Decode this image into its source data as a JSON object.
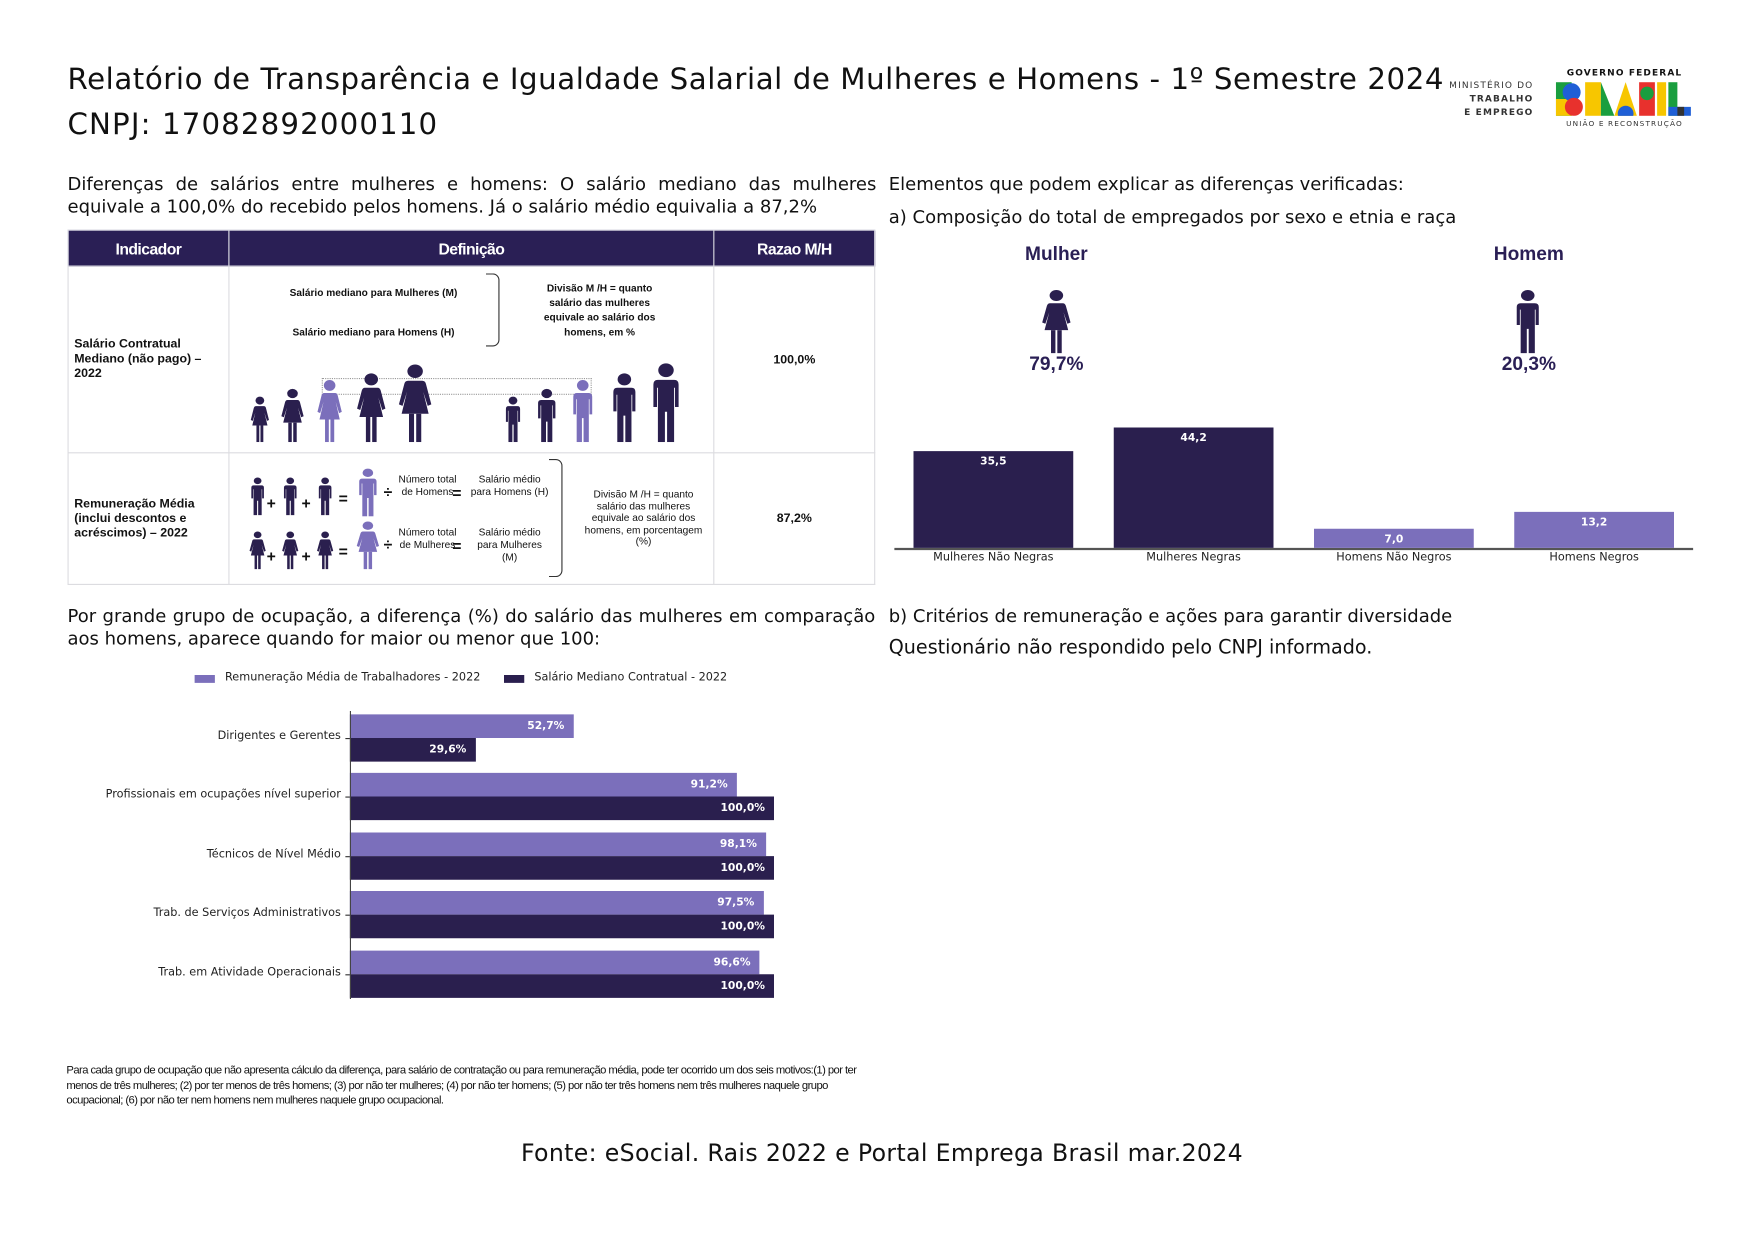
{
  "header": {
    "title": "Relatório de Transparência e Igualdade Salarial de Mulheres e Homens - 1º Semestre 2024",
    "cnpj": "CNPJ: 17082892000110"
  },
  "logo": {
    "ministry_line1": "MINISTÉRIO DO",
    "ministry_line2": "TRABALHO",
    "ministry_line3": "E EMPREGO",
    "gov": "GOVERNO FEDERAL",
    "brasil": "BRASIL",
    "slogan": "UNIÃO E RECONSTRUÇÃO"
  },
  "intro": "Diferenças de salários entre mulheres e homens: O salário mediano das mulheres equivale a 100,0% do recebido pelos homens. Já o salário médio equivalia a 87,2%",
  "table": {
    "headers": [
      "Indicador",
      "Definição",
      "Razao M/H"
    ],
    "row1": {
      "label": "Salário Contratual Mediano (não pago) – 2022",
      "def_m": "Salário mediano para Mulheres (M)",
      "def_h": "Salário mediano para Homens (H)",
      "division": "Divisão M /H = quanto salário das mulheres equivale ao salário dos homens, em %",
      "ratio": "100,0%"
    },
    "row2": {
      "label": "Remuneração Média (inclui descontos e acréscimos) – 2022",
      "total_h": "Número total de Homens",
      "avg_h": "Salário médio para Homens (H)",
      "total_m": "Número total de Mulheres",
      "avg_m": "Salário médio para Mulheres (M)",
      "division": "Divisão M /H = quanto salário das mulheres equivale ao salário dos homens, em porcentagem (%)",
      "ratio": "87,2%",
      "plus": "+",
      "equals": "=",
      "divide": "÷"
    }
  },
  "right": {
    "heading": "Elementos que podem explicar as diferenças verificadas:",
    "sub_a": "a) Composição do total de empregados por sexo e etnia e raça",
    "mulher_label": "Mulher",
    "mulher_pct": "79,7%",
    "homem_label": "Homem",
    "homem_pct": "20,3%",
    "sub_b": "b) Critérios de remuneração e ações para garantir diversidade",
    "b_text": "Questionário não respondido pelo CNPJ informado."
  },
  "occupation_intro": "Por grande grupo de ocupação, a diferença (%) do salário das mulheres em comparação aos homens, aparece quando for maior ou menor que 100:",
  "chart_data": [
    {
      "type": "bar",
      "title": "Composição do total de empregados por sexo e etnia e raça",
      "categories": [
        "Mulheres Não Negras",
        "Mulheres Negras",
        "Homens Não Negros",
        "Homens Negros"
      ],
      "values": [
        35.5,
        44.2,
        7.0,
        13.2
      ],
      "labels": [
        "35,5",
        "44,2",
        "7,0",
        "13,2"
      ],
      "colors": [
        "#2a1f4e",
        "#2a1f4e",
        "#7b6fbb",
        "#7b6fbb"
      ],
      "ylim": [
        0,
        50
      ]
    },
    {
      "type": "bar",
      "orientation": "horizontal",
      "categories": [
        "Dirigentes e Gerentes",
        "Profissionais em ocupações nível superior",
        "Técnicos de Nível Médio",
        "Trab. de Serviços Administrativos",
        "Trab. em Atividade Operacionais"
      ],
      "series": [
        {
          "name": "Remuneração Média de Trabalhadores - 2022",
          "color": "#7b6fbb",
          "values": [
            52.7,
            91.2,
            98.1,
            97.5,
            96.6
          ],
          "labels": [
            "52,7%",
            "91,2%",
            "98,1%",
            "97,5%",
            "96,6%"
          ]
        },
        {
          "name": "Salário Mediano Contratual - 2022",
          "color": "#2a1f4e",
          "values": [
            29.6,
            100.0,
            100.0,
            100.0,
            100.0
          ],
          "labels": [
            "29,6%",
            "100,0%",
            "100,0%",
            "100,0%",
            "100,0%"
          ]
        }
      ],
      "xlim": [
        0,
        100
      ],
      "legend": "top"
    }
  ],
  "note": "Para cada grupo de ocupação que não apresenta cálculo da diferença, para salário de contratação ou para remuneração média, pode ter ocorrido um dos seis motivos:(1) por ter menos de três mulheres; (2) por ter menos de três homens; (3) por não ter mulheres; (4) por não ter homens; (5) por não ter três homens nem três mulheres naquele grupo ocupacional; (6) por não ter nem homens nem mulheres naquele grupo ocupacional.",
  "fonte": "Fonte: eSocial. Rais 2022 e Portal Emprega Brasil mar.2024"
}
